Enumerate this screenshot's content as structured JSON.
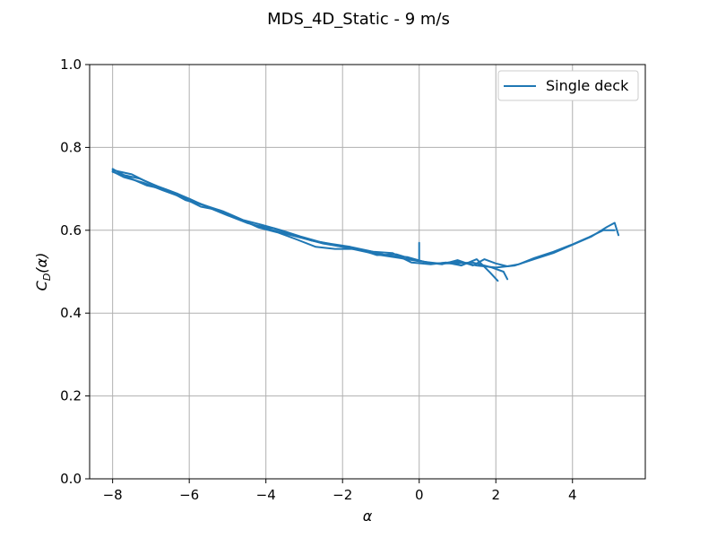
{
  "chart_data": {
    "type": "line",
    "title": "MDS_4D_Static - 9 m/s",
    "xlabel": "α",
    "ylabel_main": "C",
    "ylabel_sub": "D",
    "ylabel_suffix": "(α)",
    "xlim": [
      -8.6,
      5.9
    ],
    "ylim": [
      0.0,
      1.0
    ],
    "xticks": [
      -8,
      -6,
      -4,
      -2,
      0,
      2,
      4
    ],
    "xtick_labels": [
      "−8",
      "−6",
      "−4",
      "−2",
      "0",
      "2",
      "4"
    ],
    "yticks": [
      0.0,
      0.2,
      0.4,
      0.6,
      0.8,
      1.0
    ],
    "ytick_labels": [
      "0.0",
      "0.2",
      "0.4",
      "0.6",
      "0.8",
      "1.0"
    ],
    "grid": true,
    "legend_position": "top-right",
    "colors": {
      "series": "#1f77b4",
      "grid": "#b0b0b0"
    },
    "series": [
      {
        "name": "Single deck",
        "sweeps": [
          [
            [
              -8.0,
              0.745
            ],
            [
              -7.5,
              0.735
            ],
            [
              -7.0,
              0.712
            ],
            [
              -6.5,
              0.695
            ],
            [
              -6.0,
              0.676
            ],
            [
              -5.5,
              0.655
            ],
            [
              -5.0,
              0.636
            ],
            [
              -4.5,
              0.618
            ],
            [
              -4.0,
              0.605
            ],
            [
              -3.5,
              0.592
            ],
            [
              -3.0,
              0.58
            ],
            [
              -2.5,
              0.568
            ],
            [
              -2.0,
              0.56
            ],
            [
              -1.5,
              0.55
            ],
            [
              -1.0,
              0.54
            ],
            [
              -0.5,
              0.533
            ],
            [
              0.0,
              0.525
            ],
            [
              0.5,
              0.52
            ],
            [
              1.0,
              0.524
            ],
            [
              1.5,
              0.515
            ],
            [
              2.0,
              0.51
            ],
            [
              2.5,
              0.515
            ],
            [
              3.0,
              0.53
            ],
            [
              3.5,
              0.545
            ],
            [
              4.0,
              0.565
            ],
            [
              4.5,
              0.585
            ],
            [
              4.9,
              0.608
            ],
            [
              5.1,
              0.618
            ],
            [
              5.2,
              0.588
            ]
          ],
          [
            [
              5.1,
              0.6
            ],
            [
              4.8,
              0.6
            ],
            [
              4.4,
              0.582
            ],
            [
              4.0,
              0.566
            ],
            [
              3.5,
              0.548
            ],
            [
              3.0,
              0.533
            ],
            [
              2.6,
              0.518
            ],
            [
              2.3,
              0.513
            ],
            [
              2.0,
              0.52
            ],
            [
              1.7,
              0.53
            ],
            [
              1.4,
              0.515
            ],
            [
              1.0,
              0.528
            ],
            [
              0.6,
              0.518
            ],
            [
              0.2,
              0.522
            ],
            [
              -0.3,
              0.535
            ],
            [
              -0.8,
              0.538
            ],
            [
              -1.3,
              0.55
            ],
            [
              -1.8,
              0.56
            ],
            [
              -2.3,
              0.567
            ],
            [
              -2.8,
              0.575
            ],
            [
              -3.3,
              0.59
            ],
            [
              -3.8,
              0.605
            ],
            [
              -4.3,
              0.612
            ],
            [
              -4.8,
              0.632
            ],
            [
              -5.3,
              0.65
            ],
            [
              -5.8,
              0.667
            ],
            [
              -6.3,
              0.688
            ],
            [
              -6.8,
              0.705
            ],
            [
              -7.3,
              0.725
            ],
            [
              -7.8,
              0.735
            ],
            [
              -8.0,
              0.741
            ]
          ],
          [
            [
              -8.0,
              0.748
            ],
            [
              -7.6,
              0.728
            ],
            [
              -7.1,
              0.708
            ],
            [
              -6.6,
              0.698
            ],
            [
              -6.1,
              0.673
            ],
            [
              -5.6,
              0.66
            ],
            [
              -5.1,
              0.645
            ],
            [
              -4.6,
              0.625
            ],
            [
              -4.1,
              0.613
            ],
            [
              -3.6,
              0.6
            ],
            [
              -3.1,
              0.585
            ],
            [
              -2.6,
              0.572
            ],
            [
              -2.1,
              0.562
            ],
            [
              -1.6,
              0.555
            ],
            [
              -1.1,
              0.54
            ],
            [
              -0.6,
              0.542
            ],
            [
              -0.1,
              0.528
            ],
            [
              0.4,
              0.52
            ],
            [
              0.9,
              0.52
            ],
            [
              1.4,
              0.522
            ],
            [
              1.9,
              0.51
            ],
            [
              2.2,
              0.5
            ],
            [
              2.3,
              0.482
            ]
          ],
          [
            [
              2.05,
              0.478
            ],
            [
              1.85,
              0.498
            ],
            [
              1.5,
              0.53
            ],
            [
              1.1,
              0.515
            ],
            [
              0.7,
              0.522
            ],
            [
              0.3,
              0.518
            ],
            [
              -0.2,
              0.522
            ],
            [
              -0.7,
              0.545
            ],
            [
              -1.2,
              0.548
            ],
            [
              -1.7,
              0.555
            ],
            [
              -2.2,
              0.555
            ],
            [
              -2.7,
              0.56
            ],
            [
              -3.2,
              0.578
            ],
            [
              -3.7,
              0.595
            ],
            [
              -4.2,
              0.607
            ],
            [
              -4.7,
              0.628
            ],
            [
              -5.2,
              0.648
            ],
            [
              -5.7,
              0.657
            ],
            [
              -6.2,
              0.68
            ],
            [
              -6.7,
              0.697
            ],
            [
              -7.2,
              0.715
            ],
            [
              -7.7,
              0.728
            ],
            [
              -8.0,
              0.742
            ]
          ],
          [
            [
              0.0,
              0.57
            ],
            [
              0.0,
              0.53
            ]
          ]
        ]
      }
    ]
  }
}
